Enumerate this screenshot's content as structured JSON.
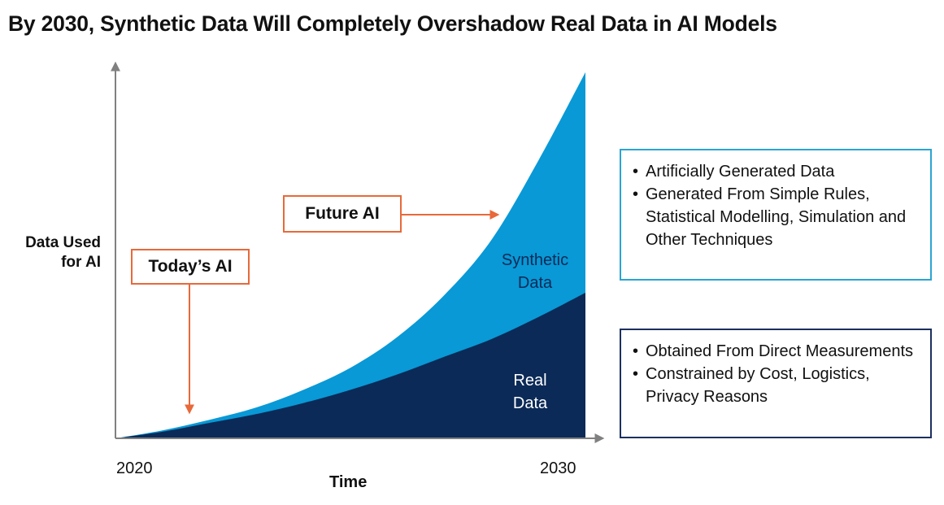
{
  "title": "By 2030,  Synthetic Data Will Completely Overshadow Real Data in AI Models",
  "chart_data": {
    "type": "area",
    "stacked": true,
    "title": "By 2030,  Synthetic Data Will Completely Overshadow Real Data in AI Models",
    "xlabel": "Time",
    "ylabel": "Data Used for AI",
    "x_ticks": [
      "2020",
      "2030"
    ],
    "x": [
      2020,
      2021,
      2022,
      2023,
      2024,
      2025,
      2026,
      2027,
      2028,
      2029,
      2030
    ],
    "series": [
      {
        "name": "Real Data",
        "values": [
          0,
          3,
          7,
          11,
          16,
          22,
          29,
          37,
          45,
          55,
          66
        ],
        "color": "#0b2a57"
      },
      {
        "name": "Synthetic Data",
        "values": [
          0,
          0.6,
          1.4,
          3,
          6,
          10,
          17,
          28,
          45,
          71,
          100
        ],
        "color": "#0899d6"
      }
    ],
    "ylim": [
      0,
      170
    ],
    "annotations": [
      "Today's AI",
      "Future AI"
    ]
  },
  "callouts": {
    "today": "Today’s AI",
    "future": "Future AI"
  },
  "area_labels": {
    "synthetic_line1": "Synthetic",
    "synthetic_line2": "Data",
    "real_line1": "Real",
    "real_line2": "Data"
  },
  "axis": {
    "ylabel_line1": "Data Used",
    "ylabel_line2": "for AI",
    "xlabel": "Time",
    "xtick_start": "2020",
    "xtick_end": "2030"
  },
  "synthetic_box": {
    "items": [
      "Artificially Generated Data",
      "Generated From Simple Rules, Statistical Modelling, Simulation and Other Techniques"
    ],
    "border_color": "#2aa5d1"
  },
  "real_box": {
    "items": [
      "Obtained From Direct Measurements",
      "Constrained by Cost, Logistics, Privacy Reasons"
    ],
    "border_color": "#1c2f5e"
  },
  "colors": {
    "synthetic": "#0899d6",
    "real": "#0b2a57",
    "accent": "#e8693a",
    "axis": "#808080"
  }
}
